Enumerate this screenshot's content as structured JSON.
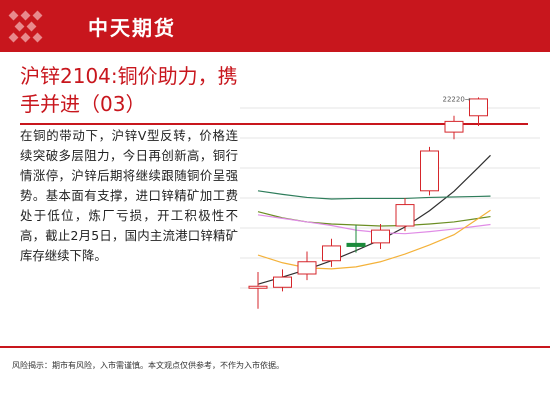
{
  "header": {
    "brand": "中天期货",
    "bg_color": "#c8161d",
    "logo_icon": "diamond-grid-icon"
  },
  "title": "沪锌2104:铜价助力，携手并进（03）",
  "body": "在铜的带动下，沪锌V型反转，价格连续突破多层阻力，今日再创新高，铜行情涨停，沪锌后期将继续跟随铜价呈强势。基本面有支撑，进口锌精矿加工费处于低位，炼厂亏损，开工积极性不高，截止2月5日，国内主流港口锌精矿库存继续下降。",
  "chart_data": {
    "type": "candlestick",
    "annotation": "22220→",
    "candles": [
      {
        "o": 18520,
        "h": 18800,
        "l": 18080,
        "c": 18520
      },
      {
        "o": 18500,
        "h": 18850,
        "l": 18420,
        "c": 18700
      },
      {
        "o": 18760,
        "h": 19200,
        "l": 18640,
        "c": 19000
      },
      {
        "o": 19020,
        "h": 19450,
        "l": 18900,
        "c": 19310
      },
      {
        "o": 19360,
        "h": 19720,
        "l": 19180,
        "c": 19300
      },
      {
        "o": 19370,
        "h": 19740,
        "l": 19250,
        "c": 19620
      },
      {
        "o": 19700,
        "h": 20250,
        "l": 19600,
        "c": 20120
      },
      {
        "o": 20390,
        "h": 21250,
        "l": 20300,
        "c": 21170
      },
      {
        "o": 21540,
        "h": 21860,
        "l": 21400,
        "c": 21750
      },
      {
        "o": 21860,
        "h": 22220,
        "l": 21660,
        "c": 22190
      }
    ],
    "ma_lines": [
      {
        "color": "#2f2f2f",
        "values": [
          18560,
          18700,
          18850,
          19020,
          19220,
          19430,
          19680,
          20000,
          20380,
          20850
        ]
      },
      {
        "color": "#2e7d5b",
        "values": [
          20390,
          20320,
          20260,
          20230,
          20240,
          20240,
          20240,
          20260,
          20270,
          20280
        ]
      },
      {
        "color": "#6b8e23",
        "values": [
          19980,
          19860,
          19780,
          19740,
          19720,
          19700,
          19710,
          19740,
          19780,
          19850
        ]
      },
      {
        "color": "#e08ce6",
        "values": [
          19920,
          19850,
          19780,
          19710,
          19620,
          19570,
          19550,
          19590,
          19640,
          19700
        ]
      },
      {
        "color": "#f4b23a",
        "values": [
          19130,
          18980,
          18880,
          18860,
          18900,
          19000,
          19150,
          19330,
          19530,
          19850
        ]
      }
    ],
    "ylim": [
      17800,
      22600
    ],
    "grid": true
  },
  "footer": {
    "disclaimer": "风险揭示：期市有风险，入市需谨慎。本文观点仅供参考，不作为入市依据。"
  }
}
